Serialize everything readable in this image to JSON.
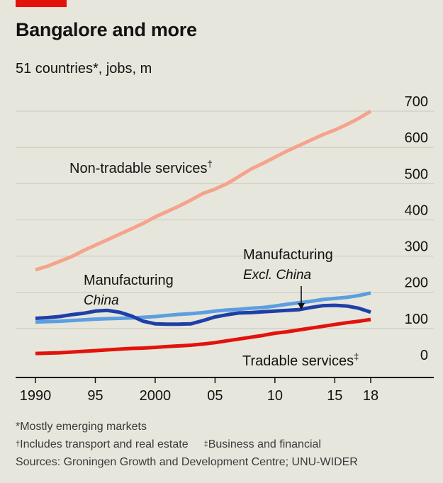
{
  "header": {
    "title": "Bangalore and more",
    "subtitle": "51 countries*, jobs, m"
  },
  "colors": {
    "background": "#e7e6dc",
    "accent_red": "#e3120b",
    "non_tradable": "#f4a48c",
    "manufacturing_china": "#1f3fa8",
    "manufacturing_excl_china": "#5b9fe0",
    "tradable": "#e3120b",
    "grid": "#c9c8be"
  },
  "chart_data": {
    "type": "line",
    "title": "Bangalore and more",
    "subtitle": "51 countries*, jobs, m",
    "xlim": [
      1990,
      2018
    ],
    "ylim": [
      0,
      700
    ],
    "y_ticks": [
      0,
      100,
      200,
      300,
      400,
      500,
      600,
      700
    ],
    "y_tick_labels": [
      "0",
      "100",
      "200",
      "300",
      "400",
      "500",
      "600",
      "700"
    ],
    "x_ticks": [
      1990,
      1995,
      2000,
      2005,
      2010,
      2015,
      2018
    ],
    "x_tick_labels": [
      "1990",
      "95",
      "2000",
      "05",
      "10",
      "15",
      "18"
    ],
    "grid": true,
    "series": [
      {
        "name": "Non-tradable services†",
        "color": "#f4a48c",
        "x": [
          1990,
          1991,
          1992,
          1993,
          1994,
          1995,
          1996,
          1997,
          1998,
          1999,
          2000,
          2001,
          2002,
          2003,
          2004,
          2005,
          2006,
          2007,
          2008,
          2009,
          2010,
          2011,
          2012,
          2013,
          2014,
          2015,
          2016,
          2017,
          2018
        ],
        "values": [
          262,
          272,
          285,
          298,
          315,
          330,
          345,
          360,
          375,
          390,
          408,
          423,
          438,
          455,
          473,
          485,
          500,
          520,
          540,
          556,
          573,
          590,
          605,
          620,
          635,
          648,
          663,
          680,
          700
        ]
      },
      {
        "name": "Manufacturing China",
        "color": "#1f3fa8",
        "x": [
          1990,
          1991,
          1992,
          1993,
          1994,
          1995,
          1996,
          1997,
          1998,
          1999,
          2000,
          2001,
          2002,
          2003,
          2004,
          2005,
          2006,
          2007,
          2008,
          2009,
          2010,
          2011,
          2012,
          2013,
          2014,
          2015,
          2016,
          2017,
          2018
        ],
        "values": [
          128,
          130,
          133,
          138,
          142,
          148,
          150,
          145,
          135,
          120,
          113,
          112,
          112,
          113,
          122,
          132,
          138,
          143,
          144,
          146,
          148,
          150,
          152,
          158,
          163,
          164,
          162,
          156,
          145
        ]
      },
      {
        "name": "Manufacturing Excl. China",
        "color": "#5b9fe0",
        "x": [
          1990,
          1991,
          1992,
          1993,
          1994,
          1995,
          1996,
          1997,
          1998,
          1999,
          2000,
          2001,
          2002,
          2003,
          2004,
          2005,
          2006,
          2007,
          2008,
          2009,
          2010,
          2011,
          2012,
          2013,
          2014,
          2015,
          2016,
          2017,
          2018
        ],
        "values": [
          118,
          119,
          120,
          122,
          124,
          126,
          127,
          128,
          129,
          131,
          133,
          136,
          139,
          141,
          144,
          148,
          151,
          153,
          156,
          158,
          162,
          167,
          171,
          175,
          180,
          183,
          186,
          191,
          198
        ]
      },
      {
        "name": "Tradable services‡",
        "color": "#e3120b",
        "x": [
          1990,
          1991,
          1992,
          1993,
          1994,
          1995,
          1996,
          1997,
          1998,
          1999,
          2000,
          2001,
          2002,
          2003,
          2004,
          2005,
          2006,
          2007,
          2008,
          2009,
          2010,
          2011,
          2012,
          2013,
          2014,
          2015,
          2016,
          2017,
          2018
        ],
        "values": [
          31,
          32,
          33,
          35,
          37,
          39,
          41,
          43,
          45,
          46,
          48,
          50,
          52,
          54,
          57,
          61,
          66,
          71,
          76,
          81,
          87,
          91,
          96,
          101,
          106,
          111,
          116,
          120,
          125
        ]
      }
    ],
    "annotations": {
      "non_tradable": "Non-tradable services",
      "non_tradable_mark": "†",
      "manufacturing_left": "Manufacturing",
      "china": "China",
      "manufacturing_right": "Manufacturing",
      "excl_china": "Excl. China",
      "tradable": "Tradable services",
      "tradable_mark": "‡"
    }
  },
  "footnotes": {
    "note1": "*Mostly emerging markets",
    "note2_mark": "†",
    "note2": "Includes transport and real estate",
    "note3_mark": "‡",
    "note3": "Business and financial",
    "sources": "Sources: Groningen Growth and Development Centre; UNU-WIDER"
  }
}
